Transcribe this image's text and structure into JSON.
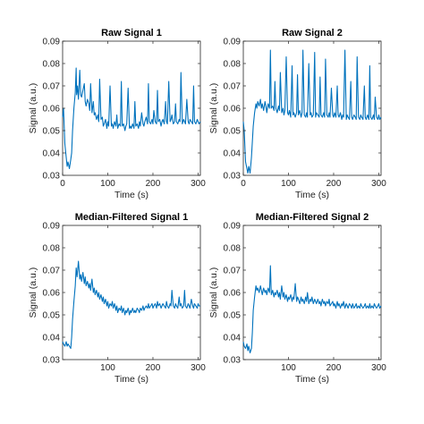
{
  "colors": {
    "series": "#0072BD",
    "axis": "#262626"
  },
  "chart_data": [
    {
      "type": "line",
      "title": "Raw Signal 1",
      "xlabel": "Time (s)",
      "ylabel": "Signal (a.u.)",
      "xlim": [
        0,
        305
      ],
      "ylim": [
        0.03,
        0.09
      ],
      "xticks": [
        0,
        100,
        200,
        300
      ],
      "yticks": [
        0.03,
        0.04,
        0.05,
        0.06,
        0.07,
        0.08,
        0.09
      ],
      "grid": false,
      "series": [
        {
          "x": [
            0,
            2,
            5,
            8,
            10,
            12,
            15,
            18,
            20,
            22,
            25,
            28,
            30,
            31,
            33,
            35,
            38,
            40,
            42,
            45,
            48,
            50,
            52,
            55,
            58,
            60,
            62,
            65,
            68,
            70,
            72,
            75,
            78,
            80,
            82,
            85,
            88,
            90,
            92,
            95,
            98,
            100,
            102,
            105,
            108,
            110,
            112,
            115,
            118,
            120,
            122,
            125,
            128,
            130,
            132,
            135,
            138,
            140,
            142,
            145,
            148,
            150,
            152,
            155,
            158,
            160,
            162,
            165,
            168,
            170,
            172,
            175,
            178,
            180,
            182,
            185,
            188,
            190,
            192,
            195,
            198,
            200,
            202,
            205,
            208,
            210,
            212,
            215,
            218,
            220,
            222,
            225,
            228,
            230,
            232,
            235,
            238,
            240,
            242,
            245,
            248,
            250,
            252,
            255,
            258,
            260,
            262,
            265,
            268,
            270,
            272,
            275,
            278,
            280,
            282,
            285,
            288,
            290,
            292,
            295,
            298,
            300,
            302,
            305
          ],
          "y": [
            0.056,
            0.06,
            0.044,
            0.038,
            0.034,
            0.036,
            0.033,
            0.037,
            0.04,
            0.05,
            0.06,
            0.067,
            0.078,
            0.066,
            0.07,
            0.064,
            0.077,
            0.066,
            0.065,
            0.068,
            0.071,
            0.063,
            0.061,
            0.064,
            0.062,
            0.059,
            0.071,
            0.058,
            0.063,
            0.057,
            0.058,
            0.055,
            0.057,
            0.054,
            0.073,
            0.055,
            0.056,
            0.052,
            0.053,
            0.055,
            0.051,
            0.054,
            0.052,
            0.07,
            0.052,
            0.053,
            0.051,
            0.054,
            0.052,
            0.057,
            0.051,
            0.053,
            0.052,
            0.072,
            0.052,
            0.053,
            0.05,
            0.052,
            0.053,
            0.069,
            0.051,
            0.052,
            0.051,
            0.053,
            0.051,
            0.063,
            0.052,
            0.053,
            0.051,
            0.054,
            0.052,
            0.058,
            0.053,
            0.052,
            0.054,
            0.056,
            0.053,
            0.071,
            0.054,
            0.053,
            0.055,
            0.053,
            0.059,
            0.054,
            0.053,
            0.068,
            0.054,
            0.055,
            0.052,
            0.054,
            0.055,
            0.053,
            0.063,
            0.054,
            0.053,
            0.072,
            0.054,
            0.055,
            0.057,
            0.053,
            0.054,
            0.062,
            0.054,
            0.053,
            0.055,
            0.054,
            0.076,
            0.053,
            0.055,
            0.054,
            0.053,
            0.064,
            0.054,
            0.053,
            0.055,
            0.054,
            0.053,
            0.07,
            0.054,
            0.053,
            0.055,
            0.054,
            0.053,
            0.054
          ]
        }
      ]
    },
    {
      "type": "line",
      "title": "Raw Signal 2",
      "xlabel": "Time (s)",
      "ylabel": "Signal (a.u.)",
      "xlim": [
        0,
        305
      ],
      "ylim": [
        0.03,
        0.09
      ],
      "xticks": [
        0,
        100,
        200,
        300
      ],
      "yticks": [
        0.03,
        0.04,
        0.05,
        0.06,
        0.07,
        0.08,
        0.09
      ],
      "grid": false,
      "series": [
        {
          "x": [
            0,
            2,
            5,
            8,
            10,
            12,
            15,
            18,
            20,
            22,
            25,
            28,
            30,
            32,
            35,
            38,
            40,
            42,
            45,
            48,
            50,
            52,
            55,
            58,
            60,
            62,
            65,
            68,
            70,
            72,
            75,
            78,
            80,
            82,
            85,
            88,
            90,
            92,
            95,
            98,
            100,
            102,
            105,
            108,
            110,
            112,
            115,
            118,
            120,
            122,
            125,
            128,
            130,
            132,
            135,
            138,
            140,
            142,
            145,
            148,
            150,
            152,
            155,
            158,
            160,
            162,
            165,
            168,
            170,
            172,
            175,
            178,
            180,
            182,
            185,
            188,
            190,
            192,
            195,
            198,
            200,
            202,
            205,
            208,
            210,
            212,
            215,
            218,
            220,
            222,
            225,
            228,
            230,
            232,
            235,
            238,
            240,
            242,
            245,
            248,
            250,
            252,
            255,
            258,
            260,
            262,
            265,
            268,
            270,
            272,
            275,
            278,
            280,
            282,
            285,
            288,
            290,
            292,
            295,
            298,
            300,
            302,
            305
          ],
          "y": [
            0.054,
            0.05,
            0.036,
            0.033,
            0.031,
            0.034,
            0.031,
            0.038,
            0.045,
            0.052,
            0.058,
            0.062,
            0.06,
            0.063,
            0.061,
            0.064,
            0.06,
            0.062,
            0.059,
            0.063,
            0.061,
            0.058,
            0.062,
            0.06,
            0.086,
            0.06,
            0.061,
            0.059,
            0.072,
            0.06,
            0.058,
            0.061,
            0.059,
            0.076,
            0.058,
            0.06,
            0.057,
            0.059,
            0.083,
            0.058,
            0.057,
            0.059,
            0.056,
            0.079,
            0.057,
            0.058,
            0.056,
            0.058,
            0.075,
            0.057,
            0.059,
            0.056,
            0.058,
            0.086,
            0.057,
            0.056,
            0.058,
            0.056,
            0.08,
            0.057,
            0.058,
            0.056,
            0.057,
            0.085,
            0.056,
            0.058,
            0.057,
            0.056,
            0.074,
            0.057,
            0.056,
            0.058,
            0.056,
            0.082,
            0.057,
            0.056,
            0.058,
            0.056,
            0.069,
            0.057,
            0.056,
            0.058,
            0.056,
            0.07,
            0.057,
            0.056,
            0.058,
            0.055,
            0.057,
            0.056,
            0.086,
            0.055,
            0.057,
            0.056,
            0.055,
            0.072,
            0.056,
            0.055,
            0.057,
            0.056,
            0.055,
            0.083,
            0.056,
            0.055,
            0.057,
            0.056,
            0.055,
            0.07,
            0.056,
            0.055,
            0.057,
            0.055,
            0.079,
            0.056,
            0.055,
            0.057,
            0.055,
            0.065,
            0.056,
            0.055,
            0.057,
            0.055,
            0.056
          ]
        }
      ]
    },
    {
      "type": "line",
      "title": "Median-Filtered Signal 1",
      "xlabel": "Time (s)",
      "ylabel": "Signal (a.u.)",
      "xlim": [
        0,
        305
      ],
      "ylim": [
        0.03,
        0.09
      ],
      "xticks": [
        100,
        200,
        300
      ],
      "yticks": [
        0.03,
        0.04,
        0.05,
        0.06,
        0.07,
        0.08,
        0.09
      ],
      "grid": false,
      "series": [
        {
          "x": [
            0,
            2,
            5,
            8,
            10,
            12,
            15,
            18,
            20,
            22,
            25,
            28,
            30,
            32,
            35,
            38,
            40,
            42,
            45,
            48,
            50,
            52,
            55,
            58,
            60,
            62,
            65,
            68,
            70,
            72,
            75,
            78,
            80,
            82,
            85,
            88,
            90,
            92,
            95,
            98,
            100,
            102,
            105,
            108,
            110,
            112,
            115,
            118,
            120,
            122,
            125,
            128,
            130,
            132,
            135,
            138,
            140,
            142,
            145,
            148,
            150,
            152,
            155,
            158,
            160,
            162,
            165,
            168,
            170,
            172,
            175,
            178,
            180,
            182,
            185,
            188,
            190,
            192,
            195,
            198,
            200,
            202,
            205,
            208,
            210,
            212,
            215,
            218,
            220,
            222,
            225,
            228,
            230,
            232,
            235,
            238,
            240,
            242,
            245,
            248,
            250,
            252,
            255,
            258,
            260,
            262,
            265,
            268,
            270,
            272,
            275,
            278,
            280,
            282,
            285,
            288,
            290,
            292,
            295,
            298,
            300,
            302,
            305
          ],
          "y": [
            0.038,
            0.037,
            0.036,
            0.038,
            0.036,
            0.037,
            0.036,
            0.035,
            0.04,
            0.048,
            0.056,
            0.063,
            0.071,
            0.067,
            0.074,
            0.066,
            0.068,
            0.065,
            0.069,
            0.064,
            0.067,
            0.063,
            0.065,
            0.062,
            0.064,
            0.061,
            0.066,
            0.06,
            0.062,
            0.059,
            0.061,
            0.058,
            0.06,
            0.057,
            0.059,
            0.056,
            0.058,
            0.055,
            0.057,
            0.054,
            0.056,
            0.053,
            0.055,
            0.054,
            0.056,
            0.053,
            0.055,
            0.052,
            0.054,
            0.051,
            0.053,
            0.052,
            0.054,
            0.051,
            0.053,
            0.05,
            0.052,
            0.051,
            0.053,
            0.05,
            0.052,
            0.051,
            0.053,
            0.051,
            0.052,
            0.051,
            0.053,
            0.052,
            0.051,
            0.053,
            0.052,
            0.054,
            0.052,
            0.053,
            0.054,
            0.053,
            0.055,
            0.053,
            0.054,
            0.055,
            0.053,
            0.054,
            0.055,
            0.053,
            0.056,
            0.054,
            0.055,
            0.053,
            0.054,
            0.055,
            0.054,
            0.053,
            0.056,
            0.054,
            0.053,
            0.055,
            0.054,
            0.061,
            0.054,
            0.053,
            0.055,
            0.054,
            0.053,
            0.058,
            0.054,
            0.055,
            0.053,
            0.054,
            0.061,
            0.054,
            0.053,
            0.055,
            0.054,
            0.053,
            0.057,
            0.054,
            0.053,
            0.055,
            0.054,
            0.053,
            0.055,
            0.054,
            0.054
          ]
        }
      ]
    },
    {
      "type": "line",
      "title": "Median-Filtered Signal 2",
      "xlabel": "Time (s)",
      "ylabel": "Signal (a.u.)",
      "xlim": [
        0,
        305
      ],
      "ylim": [
        0.03,
        0.09
      ],
      "xticks": [
        100,
        200,
        300
      ],
      "yticks": [
        0.03,
        0.04,
        0.05,
        0.06,
        0.07,
        0.08,
        0.09
      ],
      "grid": false,
      "series": [
        {
          "x": [
            0,
            2,
            5,
            8,
            10,
            12,
            15,
            18,
            20,
            22,
            25,
            28,
            30,
            32,
            35,
            38,
            40,
            42,
            45,
            48,
            50,
            52,
            55,
            58,
            60,
            62,
            65,
            68,
            70,
            72,
            75,
            78,
            80,
            82,
            85,
            88,
            90,
            92,
            95,
            98,
            100,
            102,
            105,
            108,
            110,
            112,
            115,
            118,
            120,
            122,
            125,
            128,
            130,
            132,
            135,
            138,
            140,
            142,
            145,
            148,
            150,
            152,
            155,
            158,
            160,
            162,
            165,
            168,
            170,
            172,
            175,
            178,
            180,
            182,
            185,
            188,
            190,
            192,
            195,
            198,
            200,
            202,
            205,
            208,
            210,
            212,
            215,
            218,
            220,
            222,
            225,
            228,
            230,
            232,
            235,
            238,
            240,
            242,
            245,
            248,
            250,
            252,
            255,
            258,
            260,
            262,
            265,
            268,
            270,
            272,
            275,
            278,
            280,
            282,
            285,
            288,
            290,
            292,
            295,
            298,
            300,
            302,
            305
          ],
          "y": [
            0.038,
            0.036,
            0.035,
            0.037,
            0.034,
            0.036,
            0.033,
            0.035,
            0.042,
            0.052,
            0.058,
            0.063,
            0.061,
            0.062,
            0.06,
            0.063,
            0.061,
            0.059,
            0.062,
            0.06,
            0.061,
            0.059,
            0.062,
            0.06,
            0.072,
            0.059,
            0.061,
            0.058,
            0.06,
            0.059,
            0.061,
            0.058,
            0.06,
            0.057,
            0.063,
            0.058,
            0.06,
            0.057,
            0.059,
            0.056,
            0.058,
            0.057,
            0.059,
            0.056,
            0.058,
            0.057,
            0.064,
            0.056,
            0.058,
            0.057,
            0.055,
            0.058,
            0.056,
            0.057,
            0.055,
            0.058,
            0.056,
            0.06,
            0.055,
            0.057,
            0.056,
            0.058,
            0.055,
            0.057,
            0.056,
            0.055,
            0.057,
            0.055,
            0.056,
            0.054,
            0.057,
            0.055,
            0.056,
            0.054,
            0.056,
            0.055,
            0.057,
            0.054,
            0.055,
            0.056,
            0.054,
            0.055,
            0.053,
            0.056,
            0.054,
            0.055,
            0.053,
            0.055,
            0.054,
            0.056,
            0.053,
            0.055,
            0.054,
            0.053,
            0.055,
            0.054,
            0.053,
            0.055,
            0.053,
            0.054,
            0.055,
            0.053,
            0.054,
            0.053,
            0.055,
            0.054,
            0.053,
            0.054,
            0.055,
            0.053,
            0.054,
            0.053,
            0.055,
            0.053,
            0.054,
            0.053,
            0.055,
            0.054,
            0.053,
            0.054,
            0.055,
            0.053,
            0.054
          ]
        }
      ]
    }
  ]
}
